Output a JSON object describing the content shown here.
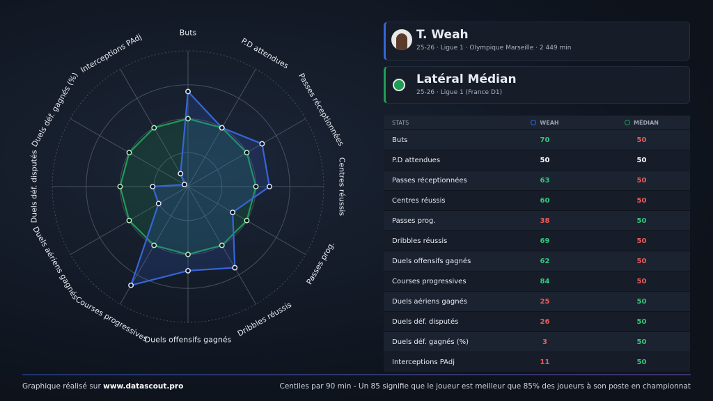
{
  "header": {
    "player": "T. Weah",
    "player_info": "25-26 · Ligue 1 · Olympique Marseille · 2 449 min",
    "profile": "Latéral Médian",
    "profile_info": "25-26 · Ligue 1 (France D1)"
  },
  "chart_data": {
    "type": "radar",
    "categories": [
      "Buts",
      "P.D attendues",
      "Passes réceptionnées",
      "Centres réussis",
      "Passes prog.",
      "Dribbles réussis",
      "Duels offensifs gagnés",
      "Courses progressives",
      "Duels aériens gagnés",
      "Duels déf. disputés",
      "Duels déf. gagnés (%)",
      "Interceptions PAdj"
    ],
    "series": [
      {
        "name": "WEAH",
        "color": "#3566d6",
        "values": [
          70,
          50,
          63,
          60,
          38,
          69,
          62,
          84,
          25,
          26,
          3,
          11
        ]
      },
      {
        "name": "MÉDIAN",
        "color": "#1f9d55",
        "values": [
          50,
          50,
          50,
          50,
          50,
          50,
          50,
          50,
          50,
          50,
          50,
          50
        ]
      }
    ],
    "rlim": [
      0,
      100
    ],
    "rticks": [
      25,
      50,
      75,
      100
    ]
  },
  "table": {
    "header": "STATS"
  },
  "footer": {
    "left": "Graphique réalisé sur",
    "site": "www.datascout.pro",
    "note": "Centiles par 90 min - Un 85 signifie que le joueur est meilleur que 85% des joueurs à son poste en championnat"
  }
}
